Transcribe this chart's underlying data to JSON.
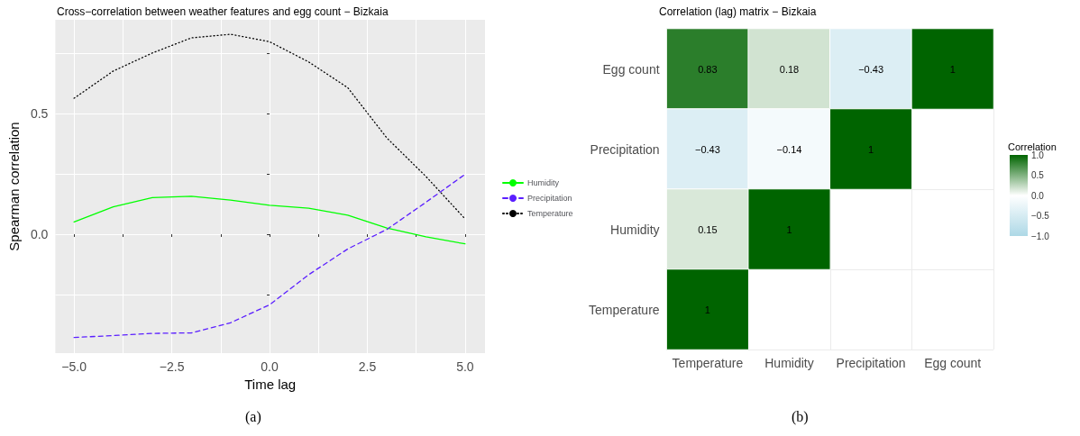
{
  "chart_data": [
    {
      "type": "line",
      "title": "Cross−correlation between weather features and egg count − Bizkaia",
      "xlabel": "Time lag",
      "ylabel": "Spearman correlation",
      "x": [
        -5,
        -4,
        -3,
        -2,
        -1,
        0,
        1,
        2,
        3,
        4,
        5
      ],
      "series": [
        {
          "name": "Humidity",
          "color": "#00ff00",
          "line_style": "solid",
          "values": [
            0.051,
            0.114,
            0.152,
            0.158,
            0.142,
            0.12,
            0.108,
            0.079,
            0.026,
            -0.011,
            -0.04
          ]
        },
        {
          "name": "Precipitation",
          "color": "#5a1eff",
          "line_style": "dashed",
          "values": [
            -0.429,
            -0.421,
            -0.412,
            -0.41,
            -0.368,
            -0.293,
            -0.168,
            -0.061,
            0.02,
            0.133,
            0.249
          ]
        },
        {
          "name": "Temperature",
          "color": "#000000",
          "line_style": "dotted",
          "values": [
            0.565,
            0.678,
            0.753,
            0.816,
            0.831,
            0.8,
            0.716,
            0.609,
            0.4,
            0.24,
            0.064
          ]
        }
      ],
      "xlim": [
        -5.48,
        5.51
      ],
      "ylim": [
        -0.494,
        0.891
      ],
      "xticks": [
        {
          "value": -5,
          "label": "−5.0"
        },
        {
          "value": -3.75,
          "label": null
        },
        {
          "value": -2.5,
          "label": "−2.5"
        },
        {
          "value": -1.25,
          "label": null
        },
        {
          "value": 0,
          "label": "0.0"
        },
        {
          "value": 1.25,
          "label": null
        },
        {
          "value": 2.5,
          "label": "2.5"
        },
        {
          "value": 3.75,
          "label": null
        },
        {
          "value": 5,
          "label": "5.0"
        }
      ],
      "yticks": [
        {
          "value": -0.25,
          "label": null
        },
        {
          "value": 0,
          "label": "0.0"
        },
        {
          "value": 0.25,
          "label": null
        },
        {
          "value": 0.5,
          "label": "0.5"
        },
        {
          "value": 0.75,
          "label": null
        }
      ],
      "grid": true,
      "legend": "right",
      "marker": "none",
      "annotations": [
        "(a)"
      ]
    },
    {
      "type": "heatmap",
      "title": "Correlation (lag) matrix − Bizkaia",
      "clabel": "Correlation",
      "categories": [
        "Temperature",
        "Humidity",
        "Precipitation",
        "Egg count"
      ],
      "y_categories": [
        "Egg count",
        "Precipitation",
        "Humidity",
        "Temperature"
      ],
      "cells": [
        [
          0.83,
          0.18,
          -0.43,
          1
        ],
        [
          -0.43,
          -0.14,
          1,
          null
        ],
        [
          0.15,
          1,
          null,
          null
        ],
        [
          1,
          null,
          null,
          null
        ]
      ],
      "cell_labels": [
        [
          "0.83",
          "0.18",
          "−0.43",
          "1"
        ],
        [
          "−0.43",
          "−0.14",
          "1",
          null
        ],
        [
          "0.15",
          "1",
          null,
          null
        ],
        [
          "1",
          null,
          null,
          null
        ]
      ],
      "clim": [
        -1,
        1
      ],
      "cticks": [
        {
          "value": -1,
          "label": "−1.0"
        },
        {
          "value": -0.5,
          "label": "−0.5"
        },
        {
          "value": 0,
          "label": "0.0"
        },
        {
          "value": 0.5,
          "label": "0.5"
        },
        {
          "value": 1,
          "label": "1.0"
        }
      ],
      "grid": true,
      "annotations": [
        "(b)"
      ]
    }
  ]
}
